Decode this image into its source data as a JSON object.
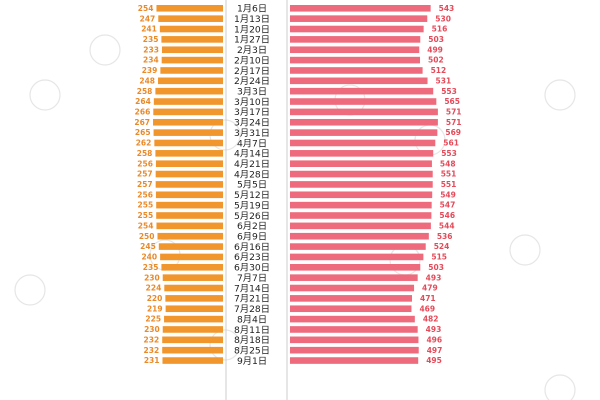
{
  "chart_data": {
    "type": "bar",
    "orientation": "diverging-horizontal",
    "title": "",
    "xlabel": "",
    "ylabel": "",
    "categories": [
      "1月6日",
      "1月13日",
      "1月20日",
      "1月27日",
      "2月3日",
      "2月10日",
      "2月17日",
      "2月24日",
      "3月3日",
      "3月10日",
      "3月17日",
      "3月24日",
      "3月31日",
      "4月7日",
      "4月14日",
      "4月21日",
      "4月28日",
      "5月5日",
      "5月12日",
      "5月19日",
      "5月26日",
      "6月2日",
      "6月9日",
      "6月16日",
      "6月23日",
      "6月30日",
      "7月7日",
      "7月14日",
      "7月21日",
      "7月28日",
      "8月4日",
      "8月11日",
      "8月18日",
      "8月25日",
      "9月1日"
    ],
    "series": [
      {
        "name": "left",
        "color": "#f0962d",
        "values": [
          254,
          247,
          241,
          235,
          233,
          234,
          239,
          248,
          258,
          264,
          266,
          267,
          265,
          262,
          258,
          256,
          257,
          257,
          256,
          255,
          255,
          254,
          250,
          245,
          240,
          235,
          230,
          224,
          220,
          219,
          225,
          230,
          232,
          232,
          231
        ]
      },
      {
        "name": "right",
        "color": "#ee6b7d",
        "values": [
          543,
          530,
          516,
          503,
          499,
          502,
          512,
          531,
          553,
          565,
          571,
          571,
          569,
          561,
          553,
          548,
          551,
          551,
          549,
          547,
          546,
          544,
          536,
          524,
          515,
          503,
          493,
          479,
          471,
          469,
          482,
          493,
          496,
          497,
          495
        ]
      }
    ],
    "label_colors": {
      "left": "#e98a2a",
      "right": "#e44b5a",
      "category": "#222222"
    },
    "divider_color": "#cccccc",
    "watermark_color": "#e6e6e6"
  }
}
